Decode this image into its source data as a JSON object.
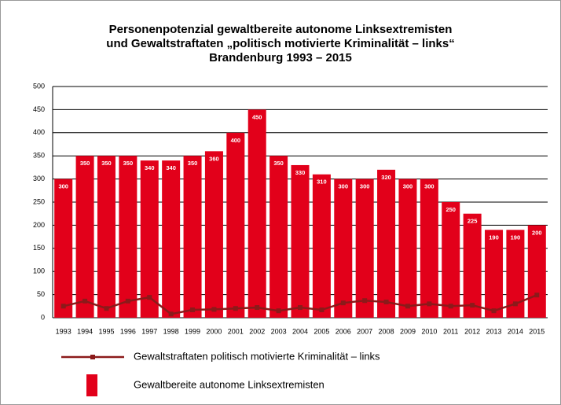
{
  "chart_data": {
    "type": "bar",
    "title": [
      "Personenpotenzial gewaltbereite autonome Linksextremisten",
      "und Gewaltstraftaten „politisch motivierte Kriminalität – links“",
      "Brandenburg 1993 – 2015"
    ],
    "categories": [
      "1993",
      "1994",
      "1995",
      "1996",
      "1997",
      "1998",
      "1999",
      "2000",
      "2001",
      "2002",
      "2003",
      "2004",
      "2005",
      "2006",
      "2007",
      "2008",
      "2009",
      "2010",
      "2011",
      "2012",
      "2013",
      "2014",
      "2015"
    ],
    "series": [
      {
        "name": "Gewaltstraftaten politisch motivierte Kriminalität – links",
        "type": "line",
        "color": "#8b1a1a",
        "values": [
          25,
          36,
          20,
          36,
          44,
          8,
          17,
          18,
          20,
          22,
          15,
          22,
          17,
          32,
          37,
          34,
          25,
          30,
          25,
          27,
          15,
          30,
          49
        ]
      },
      {
        "name": "Gewaltbereite autonome Linksextremisten",
        "type": "bar",
        "color": "#e2001a",
        "values": [
          300,
          350,
          350,
          350,
          340,
          340,
          350,
          360,
          400,
          450,
          350,
          330,
          310,
          300,
          300,
          320,
          300,
          300,
          250,
          225,
          190,
          190,
          200
        ]
      }
    ],
    "ylim": [
      0,
      500
    ],
    "yticks": [
      0,
      50,
      100,
      150,
      200,
      250,
      300,
      350,
      400,
      450,
      500
    ],
    "grid": true
  }
}
